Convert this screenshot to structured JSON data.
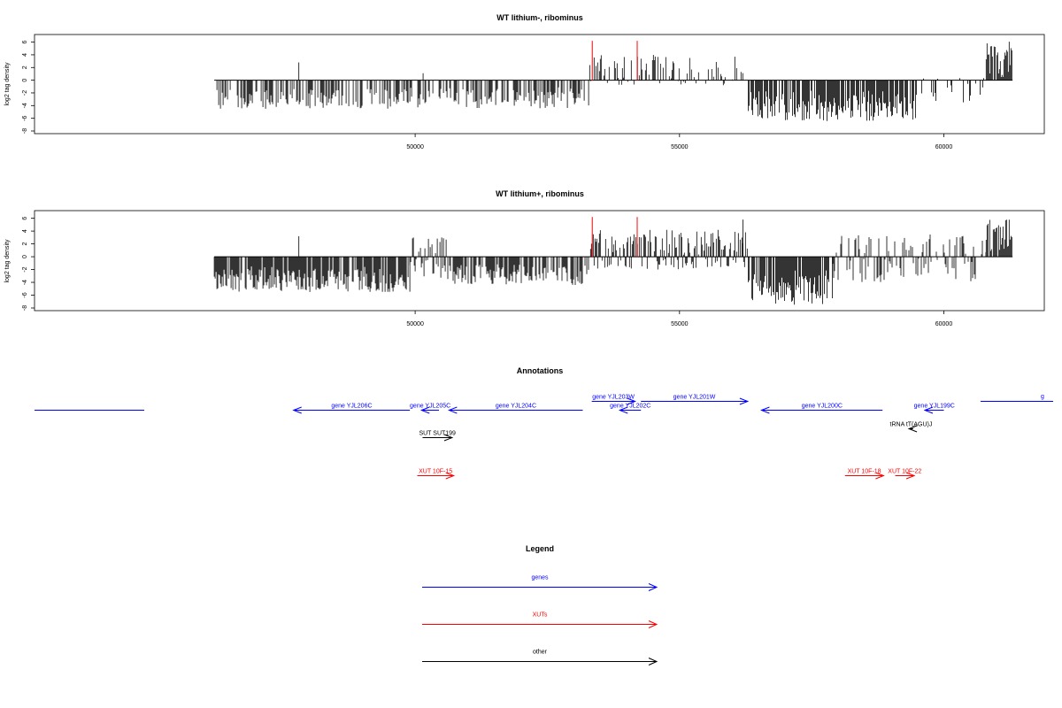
{
  "chart_data": [
    {
      "type": "bar",
      "title": "WT lithium-, ribominus",
      "ylabel": "log2 tag density",
      "xlabel": "",
      "xlim": [
        42800,
        61900
      ],
      "ylim": [
        -8,
        6.5
      ],
      "x_ticks": [
        50000,
        55000,
        60000
      ],
      "y_ticks": [
        6,
        4,
        2,
        0,
        -2,
        -4,
        -6,
        -8
      ],
      "baseline_range": [
        46200,
        61300
      ],
      "markers": [
        53350,
        54200
      ],
      "marker_color": "#ff0000",
      "segments": [
        {
          "x0": 46200,
          "x1": 53300,
          "min": -4.5,
          "max": 0,
          "density": 0.55,
          "seed": 11
        },
        {
          "x0": 53300,
          "x1": 56200,
          "min": -0.8,
          "max": 4.0,
          "density": 0.35,
          "seed": 12
        },
        {
          "x0": 56300,
          "x1": 59500,
          "min": -6.5,
          "max": 0,
          "density": 0.8,
          "seed": 13
        },
        {
          "x0": 59500,
          "x1": 60800,
          "min": -3.5,
          "max": 0.4,
          "density": 0.2,
          "seed": 14
        },
        {
          "x0": 60800,
          "x1": 61300,
          "min": 0.5,
          "max": 6.2,
          "density": 0.9,
          "seed": 15
        }
      ],
      "spikes": [
        {
          "x": 47800,
          "y": 2.8
        },
        {
          "x": 50150,
          "y": 1.1
        }
      ]
    },
    {
      "type": "bar",
      "title": "WT lithium+, ribominus",
      "ylabel": "log2 tag density",
      "xlabel": "",
      "xlim": [
        42800,
        61900
      ],
      "ylim": [
        -8,
        6.5
      ],
      "x_ticks": [
        50000,
        55000,
        60000
      ],
      "y_ticks": [
        6,
        4,
        2,
        0,
        -2,
        -4,
        -6,
        -8
      ],
      "baseline_range": [
        46200,
        61300
      ],
      "markers": [
        53350,
        54200
      ],
      "marker_color": "#ff0000",
      "segments": [
        {
          "x0": 46200,
          "x1": 49900,
          "min": -5.5,
          "max": 0,
          "density": 0.85,
          "seed": 21
        },
        {
          "x0": 49900,
          "x1": 50600,
          "min": -4.0,
          "max": 3.0,
          "density": 0.7,
          "seed": 22
        },
        {
          "x0": 50600,
          "x1": 53300,
          "min": -4.5,
          "max": 0,
          "density": 0.7,
          "seed": 23
        },
        {
          "x0": 53300,
          "x1": 56300,
          "min": -2.0,
          "max": 4.2,
          "density": 0.8,
          "seed": 24
        },
        {
          "x0": 56300,
          "x1": 57900,
          "min": -7.5,
          "max": 0,
          "density": 0.85,
          "seed": 25
        },
        {
          "x0": 57900,
          "x1": 60800,
          "min": -4.0,
          "max": 3.5,
          "density": 0.6,
          "seed": 26
        },
        {
          "x0": 60800,
          "x1": 61300,
          "min": 0.8,
          "max": 6.0,
          "density": 0.9,
          "seed": 27
        }
      ],
      "spikes": [
        {
          "x": 47800,
          "y": 3.2
        },
        {
          "x": 56200,
          "y": 5.8
        }
      ]
    }
  ],
  "annotations": {
    "title": "Annotations",
    "features": [
      {
        "label": "gene YJL206C",
        "x0": 47700,
        "x1": 49900,
        "dir": "left",
        "color": "#0000ff",
        "row": 0
      },
      {
        "label": "gene YJL205C",
        "x0": 50120,
        "x1": 50450,
        "dir": "left",
        "color": "#0000ff",
        "row": 0
      },
      {
        "label": "gene YJL204C",
        "x0": 50640,
        "x1": 53170,
        "dir": "left",
        "color": "#0000ff",
        "row": 0
      },
      {
        "label": "gene YJL203W",
        "x0": 53340,
        "x1": 54160,
        "dir": "right",
        "color": "#0000ff",
        "row": -1
      },
      {
        "label": "gene YJL202C",
        "x0": 53870,
        "x1": 54270,
        "dir": "left",
        "color": "#0000ff",
        "row": 0
      },
      {
        "label": "gene YJL201W",
        "x0": 54270,
        "x1": 56290,
        "dir": "right",
        "color": "#0000ff",
        "row": -1
      },
      {
        "label": "gene YJL200C",
        "x0": 56550,
        "x1": 58840,
        "dir": "left",
        "color": "#0000ff",
        "row": 0
      },
      {
        "label": "gene YJL199C",
        "x0": 59640,
        "x1": 60000,
        "dir": "left",
        "color": "#0000ff",
        "row": 0
      },
      {
        "label": "SUT SUT199",
        "x0": 50140,
        "x1": 50700,
        "dir": "right",
        "color": "#000000",
        "row": 2
      },
      {
        "label": "tRNA tT(AGU)J",
        "x0": 59340,
        "x1": 59420,
        "dir": "left",
        "color": "#000000",
        "row": 1
      },
      {
        "label": "XUT 10F-15",
        "x0": 50040,
        "x1": 50730,
        "dir": "right",
        "color": "#ff0000",
        "row": 5
      },
      {
        "label": "XUT 10F-18",
        "x0": 58130,
        "x1": 58860,
        "dir": "right",
        "color": "#ff0000",
        "row": 5
      },
      {
        "label": "XUT 10F-22",
        "x0": 59080,
        "x1": 59440,
        "dir": "right",
        "color": "#ff0000",
        "row": 5
      }
    ],
    "partial_label": "g"
  },
  "legend": {
    "title": "Legend",
    "items": [
      {
        "label": "genes",
        "color": "#0000ff"
      },
      {
        "label": "XUTs",
        "color": "#ff0000"
      },
      {
        "label": "other",
        "color": "#000000"
      }
    ]
  }
}
